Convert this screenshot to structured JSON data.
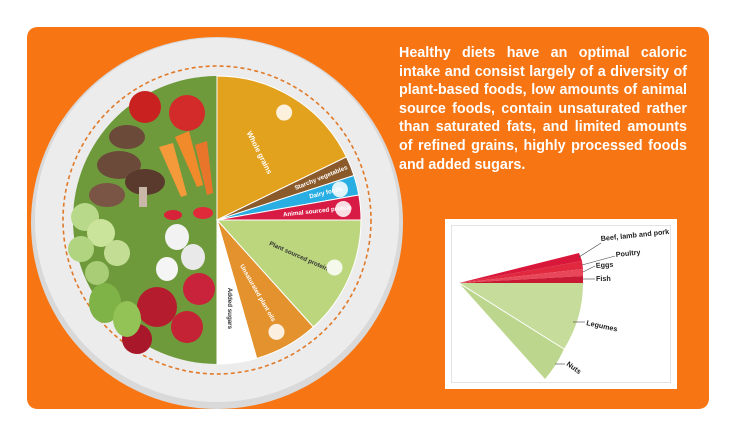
{
  "colors": {
    "background": "#f77513",
    "plate": "#ececec",
    "veg_green": "#6f9a3c",
    "whole_grains": "#e3a21e",
    "starchy": "#8b5a2b",
    "dairy": "#29aee3",
    "animal_protein": "#d81b45",
    "plant_protein": "#bcd67e",
    "plant_oils": "#e3922e",
    "added_sugars": "#ffffff"
  },
  "plate": {
    "segments": [
      {
        "label": "Whole grains"
      },
      {
        "label": "Starchy vegetables"
      },
      {
        "label": "Dairy foods"
      },
      {
        "label": "Animal sourced protein"
      },
      {
        "label": "Plant sourced protein"
      },
      {
        "label": "Unsaturated plant oils"
      },
      {
        "label": "Added sugars"
      }
    ]
  },
  "description": "Healthy diets have an optimal caloric intake and consist largely of a diversity of plant-based foods, low amounts of animal source foods, contain unsaturated rather than saturated fats, and limited amounts of refined grains, highly processed foods and added sugars.",
  "protein_chart": {
    "labels": {
      "beef": "Beef, lamb and pork",
      "poultry": "Poultry",
      "eggs": "Eggs",
      "fish": "Fish",
      "legumes": "Legumes",
      "nuts": "Nuts"
    }
  }
}
